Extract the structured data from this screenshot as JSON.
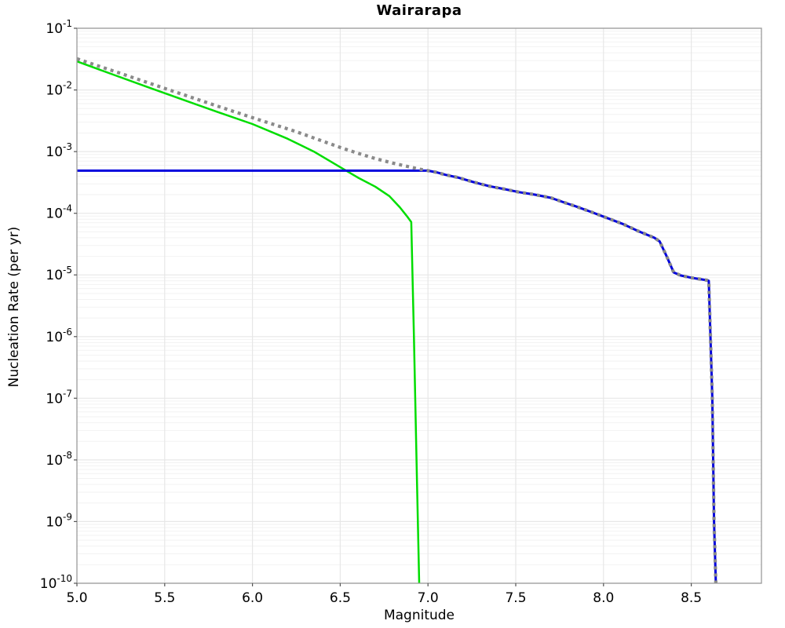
{
  "chart_data": {
    "type": "line",
    "title": "Wairarapa",
    "xlabel": "Magnitude",
    "ylabel": "Nucleation Rate (per yr)",
    "xlim": [
      5.0,
      8.9
    ],
    "ylim": [
      1e-10,
      0.1
    ],
    "yscale": "log",
    "xscale": "linear",
    "grid": true,
    "legend": false,
    "x_ticks": [
      5.0,
      5.5,
      6.0,
      6.5,
      7.0,
      7.5,
      8.0,
      8.5
    ],
    "y_tick_exponents": [
      -1,
      -2,
      -3,
      -4,
      -5,
      -6,
      -7,
      -8,
      -9,
      -10
    ],
    "colors": {
      "green_line": "#00dd00",
      "blue_line": "#0000dd",
      "gray_dotted_line": "#8a8a8a",
      "grid_major": "#e7e7e7",
      "grid_minor": "#f2f2f2",
      "spine": "#9a9a9a",
      "tick": "#555555",
      "background": "#ffffff"
    },
    "series": [
      {
        "name": "green-curve",
        "color": "#00dd00",
        "style": "solid",
        "width": 2.5,
        "points": [
          [
            5.0,
            0.029
          ],
          [
            5.2,
            0.018
          ],
          [
            5.4,
            0.0112
          ],
          [
            5.6,
            0.007
          ],
          [
            5.8,
            0.0044
          ],
          [
            6.0,
            0.0028
          ],
          [
            6.2,
            0.00162
          ],
          [
            6.35,
            0.001
          ],
          [
            6.5,
            0.00056
          ],
          [
            6.6,
            0.00038
          ],
          [
            6.7,
            0.00027
          ],
          [
            6.78,
            0.00019
          ],
          [
            6.84,
            0.000125
          ],
          [
            6.88,
            9e-05
          ],
          [
            6.905,
            7.2e-05
          ],
          [
            6.92,
            1e-06
          ],
          [
            6.935,
            1e-08
          ],
          [
            6.95,
            1e-10
          ]
        ]
      },
      {
        "name": "blue-curve",
        "color": "#0000dd",
        "style": "solid",
        "width": 3,
        "points": [
          [
            5.0,
            0.00049
          ],
          [
            7.0,
            0.00049
          ],
          [
            7.05,
            0.00046
          ],
          [
            7.1,
            0.00042
          ],
          [
            7.17,
            0.00038
          ],
          [
            7.26,
            0.00032
          ],
          [
            7.35,
            0.000275
          ],
          [
            7.44,
            0.000245
          ],
          [
            7.52,
            0.00022
          ],
          [
            7.61,
            0.0002
          ],
          [
            7.7,
            0.000178
          ],
          [
            7.79,
            0.000145
          ],
          [
            7.84,
            0.00013
          ],
          [
            7.93,
            0.000105
          ],
          [
            8.01,
            8.6e-05
          ],
          [
            8.11,
            6.7e-05
          ],
          [
            8.2,
            5.1e-05
          ],
          [
            8.29,
            4e-05
          ],
          [
            8.32,
            3.5e-05
          ],
          [
            8.36,
            2e-05
          ],
          [
            8.4,
            1.1e-05
          ],
          [
            8.44,
            9.8e-06
          ],
          [
            8.5,
            9e-06
          ],
          [
            8.59,
            8.2e-06
          ],
          [
            8.6,
            8e-06
          ],
          [
            8.62,
            1e-07
          ],
          [
            8.63,
            1e-09
          ],
          [
            8.64,
            1e-10
          ]
        ]
      },
      {
        "name": "gray-dotted-curve",
        "color": "#8a8a8a",
        "style": "dotted",
        "width": 4.2,
        "points": [
          [
            5.0,
            0.032
          ],
          [
            5.25,
            0.0185
          ],
          [
            5.5,
            0.0106
          ],
          [
            5.75,
            0.0061
          ],
          [
            6.0,
            0.00355
          ],
          [
            6.25,
            0.0021
          ],
          [
            6.5,
            0.00117
          ],
          [
            6.6,
            0.00094
          ],
          [
            6.7,
            0.00077
          ],
          [
            6.8,
            0.00065
          ],
          [
            6.9,
            0.00056
          ],
          [
            6.95,
            0.00052
          ],
          [
            7.0,
            0.00049
          ],
          [
            7.05,
            0.00046
          ],
          [
            7.1,
            0.00042
          ],
          [
            7.17,
            0.00038
          ],
          [
            7.26,
            0.00032
          ],
          [
            7.35,
            0.000275
          ],
          [
            7.44,
            0.000245
          ],
          [
            7.52,
            0.00022
          ],
          [
            7.61,
            0.0002
          ],
          [
            7.7,
            0.000178
          ],
          [
            7.79,
            0.000145
          ],
          [
            7.84,
            0.00013
          ],
          [
            7.93,
            0.000105
          ],
          [
            8.01,
            8.6e-05
          ],
          [
            8.11,
            6.7e-05
          ],
          [
            8.2,
            5.1e-05
          ],
          [
            8.29,
            4e-05
          ],
          [
            8.32,
            3.5e-05
          ],
          [
            8.36,
            2e-05
          ],
          [
            8.4,
            1.1e-05
          ],
          [
            8.44,
            9.8e-06
          ],
          [
            8.5,
            9e-06
          ],
          [
            8.59,
            8.2e-06
          ],
          [
            8.6,
            8e-06
          ],
          [
            8.62,
            1e-07
          ],
          [
            8.63,
            1e-09
          ],
          [
            8.64,
            1e-10
          ]
        ]
      }
    ]
  }
}
